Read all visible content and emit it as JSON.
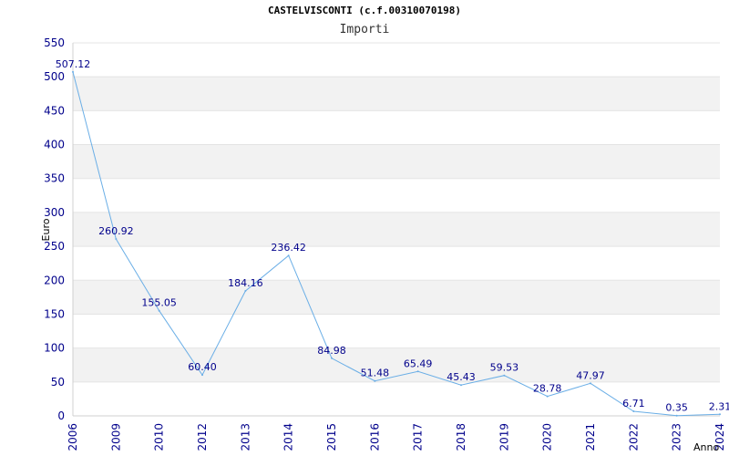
{
  "chart_data": {
    "type": "line",
    "title": "CASTELVISCONTI (c.f.00310070198)",
    "subtitle": "Importi",
    "xlabel": "Anno",
    "ylabel": "Euro",
    "ylim": [
      0,
      550
    ],
    "yticks": [
      "0",
      "50",
      "100",
      "150",
      "200",
      "250",
      "300",
      "350",
      "400",
      "450",
      "500",
      "550"
    ],
    "categories": [
      "2006",
      "2009",
      "2010",
      "2012",
      "2013",
      "2014",
      "2015",
      "2016",
      "2017",
      "2018",
      "2019",
      "2020",
      "2021",
      "2022",
      "2023",
      "2024"
    ],
    "values": [
      507.12,
      260.92,
      155.05,
      60.4,
      184.16,
      236.42,
      84.98,
      51.48,
      65.49,
      45.43,
      59.53,
      28.78,
      47.97,
      6.71,
      0.35,
      2.31
    ],
    "data_labels": [
      "507.12",
      "260.92",
      "155.05",
      "60.40",
      "184.16",
      "236.42",
      "84.98",
      "51.48",
      "65.49",
      "45.43",
      "59.53",
      "28.78",
      "47.97",
      "6.71",
      "0.35",
      "2.31"
    ],
    "grid": true,
    "colors": {
      "line": "#6aaee6",
      "band": "#f2f2f2",
      "axis_text": "#00008b",
      "label_text": "#00008b"
    }
  }
}
